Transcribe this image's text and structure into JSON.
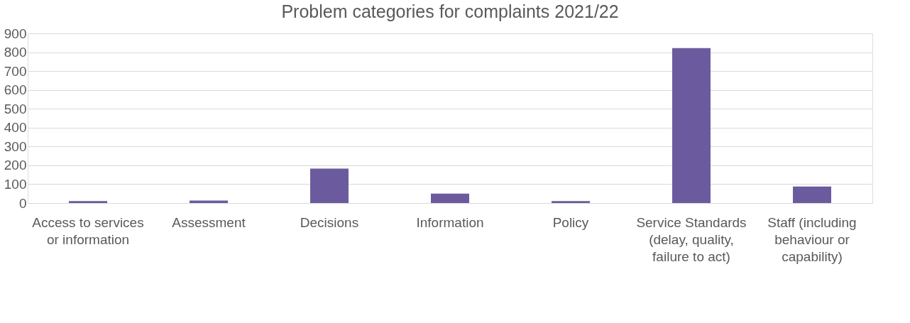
{
  "chart_data": {
    "type": "bar",
    "title": "Problem categories for complaints 2021/22",
    "categories": [
      "Access to services or information",
      "Assessment",
      "Decisions",
      "Information",
      "Policy",
      "Service Standards (delay, quality, failure to act)",
      "Staff (including behaviour or capability)"
    ],
    "values": [
      10,
      13,
      183,
      50,
      10,
      822,
      88
    ],
    "color": "#6b5b9e",
    "ylim": [
      0,
      900
    ],
    "yticks": [
      0,
      100,
      200,
      300,
      400,
      500,
      600,
      700,
      800,
      900
    ],
    "grid": "y"
  }
}
